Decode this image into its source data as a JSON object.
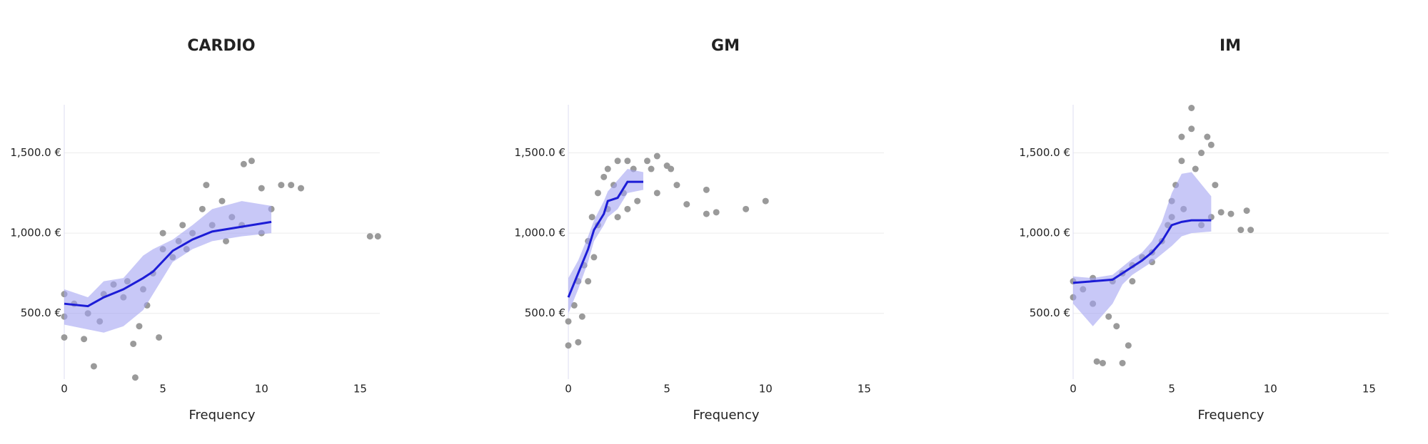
{
  "chart_data": [
    {
      "type": "scatter",
      "title": "CARDIO",
      "x_label": "Frequency",
      "xlim": [
        0,
        16
      ],
      "xticks": [
        0,
        5,
        10,
        15
      ],
      "ylim": [
        90,
        1800
      ],
      "yticks": [
        {
          "value": 500,
          "label": "500.0 €"
        },
        {
          "value": 1000,
          "label": "1,000.0 €"
        },
        {
          "value": 1500,
          "label": "1,500.0 €"
        }
      ],
      "grid": true,
      "points": {
        "color": "#9a9a9a",
        "x": [
          0,
          0,
          0,
          0.5,
          1,
          1.2,
          1.5,
          1.8,
          2,
          2.5,
          3,
          3.2,
          3.5,
          3.6,
          3.8,
          4,
          4.2,
          4.5,
          4.8,
          5,
          5,
          5.5,
          5.8,
          6,
          6.2,
          6.5,
          7,
          7.2,
          7.5,
          8,
          8.2,
          8.5,
          9,
          9.1,
          9.5,
          10,
          10,
          10.5,
          11,
          11.5,
          12,
          15.5,
          15.9
        ],
        "values": [
          620,
          480,
          350,
          560,
          340,
          500,
          170,
          450,
          620,
          680,
          600,
          700,
          310,
          100,
          420,
          650,
          550,
          750,
          350,
          900,
          1000,
          850,
          950,
          1050,
          900,
          1000,
          1150,
          1300,
          1050,
          1200,
          950,
          1100,
          1050,
          1430,
          1450,
          1280,
          1000,
          1150,
          1300,
          1300,
          1280,
          980,
          980
        ]
      },
      "band": {
        "color": "#a3a3f2",
        "x": [
          0,
          1.2,
          2,
          3,
          4,
          4.5,
          5.5,
          6.5,
          7.5,
          9,
          10.5
        ],
        "lower": [
          430,
          400,
          380,
          420,
          520,
          620,
          820,
          900,
          950,
          980,
          1000
        ],
        "upper": [
          650,
          600,
          700,
          720,
          860,
          900,
          960,
          1050,
          1150,
          1200,
          1170
        ]
      },
      "trend": {
        "color": "#1c1cd6",
        "x": [
          0,
          1.2,
          2,
          3,
          4,
          4.5,
          5.5,
          6.5,
          7.5,
          9,
          10.5
        ],
        "values": [
          560,
          545,
          600,
          650,
          720,
          760,
          890,
          960,
          1010,
          1040,
          1070
        ]
      }
    },
    {
      "type": "scatter",
      "title": "GM",
      "x_label": "Frequency",
      "xlim": [
        0,
        16
      ],
      "xticks": [
        0,
        5,
        10,
        15
      ],
      "ylim": [
        90,
        1800
      ],
      "yticks": [
        {
          "value": 500,
          "label": "500.0 €"
        },
        {
          "value": 1000,
          "label": "1,000.0 €"
        },
        {
          "value": 1500,
          "label": "1,500.0 €"
        }
      ],
      "grid": true,
      "points": {
        "color": "#9a9a9a",
        "x": [
          0,
          0,
          0.3,
          0.5,
          0.5,
          0.7,
          0.8,
          1,
          1,
          1.2,
          1.3,
          1.5,
          1.5,
          1.8,
          2,
          2,
          2.3,
          2.5,
          2.5,
          2.8,
          3,
          3,
          3.3,
          3.5,
          4,
          4.2,
          4.5,
          4.5,
          5,
          5.2,
          5.5,
          6,
          7,
          7,
          7.5,
          9,
          10
        ],
        "values": [
          300,
          450,
          550,
          320,
          700,
          480,
          800,
          950,
          700,
          1100,
          850,
          1250,
          1050,
          1350,
          1150,
          1400,
          1300,
          1450,
          1100,
          1250,
          1450,
          1150,
          1400,
          1200,
          1450,
          1400,
          1480,
          1250,
          1420,
          1400,
          1300,
          1180,
          1120,
          1270,
          1130,
          1150,
          1200
        ]
      },
      "band": {
        "color": "#a3a3f2",
        "x": [
          0,
          0.5,
          1,
          1.3,
          1.8,
          2,
          2.5,
          3,
          3.8
        ],
        "lower": [
          500,
          650,
          820,
          950,
          1050,
          1100,
          1150,
          1250,
          1270
        ],
        "upper": [
          720,
          830,
          980,
          1080,
          1200,
          1260,
          1330,
          1400,
          1380
        ]
      },
      "trend": {
        "color": "#1c1cd6",
        "x": [
          0,
          0.5,
          1,
          1.3,
          1.8,
          2,
          2.5,
          3,
          3.8
        ],
        "values": [
          600,
          750,
          900,
          1020,
          1120,
          1200,
          1220,
          1320,
          1320
        ]
      }
    },
    {
      "type": "scatter",
      "title": "IM",
      "x_label": "Frequency",
      "xlim": [
        0,
        16
      ],
      "xticks": [
        0,
        5,
        10,
        15
      ],
      "ylim": [
        90,
        1800
      ],
      "yticks": [
        {
          "value": 500,
          "label": "500.0 €"
        },
        {
          "value": 1000,
          "label": "1,000.0 €"
        },
        {
          "value": 1500,
          "label": "1,500.0 €"
        }
      ],
      "grid": true,
      "points": {
        "color": "#9a9a9a",
        "x": [
          0,
          0,
          0.5,
          1,
          1,
          1.2,
          1.5,
          1.8,
          2,
          2.2,
          2.5,
          2.5,
          2.8,
          3,
          3,
          3.5,
          4,
          4,
          4.5,
          4.8,
          5,
          5,
          5.2,
          5.5,
          5.5,
          5.6,
          6,
          6,
          6.2,
          6.5,
          6.5,
          6.8,
          7,
          7,
          7.2,
          7.5,
          8,
          8.5,
          8.8,
          9
        ],
        "values": [
          600,
          700,
          650,
          720,
          560,
          200,
          190,
          480,
          700,
          420,
          190,
          750,
          300,
          800,
          700,
          850,
          880,
          820,
          950,
          1050,
          1200,
          1100,
          1300,
          1450,
          1600,
          1150,
          1780,
          1650,
          1400,
          1500,
          1050,
          1600,
          1550,
          1100,
          1300,
          1130,
          1120,
          1020,
          1140,
          1020
        ]
      },
      "band": {
        "color": "#a3a3f2",
        "x": [
          0,
          1,
          2,
          2.5,
          3,
          3.5,
          4,
          4.5,
          5,
          5.5,
          6,
          7
        ],
        "lower": [
          560,
          420,
          560,
          680,
          740,
          780,
          820,
          870,
          920,
          980,
          1000,
          1010
        ],
        "upper": [
          730,
          720,
          740,
          790,
          840,
          880,
          950,
          1070,
          1250,
          1370,
          1380,
          1230
        ]
      },
      "trend": {
        "color": "#1c1cd6",
        "x": [
          0,
          1,
          2,
          2.5,
          3,
          3.5,
          4,
          4.5,
          5,
          5.5,
          6,
          7
        ],
        "values": [
          690,
          700,
          710,
          750,
          790,
          830,
          880,
          950,
          1050,
          1070,
          1080,
          1080
        ]
      }
    }
  ]
}
